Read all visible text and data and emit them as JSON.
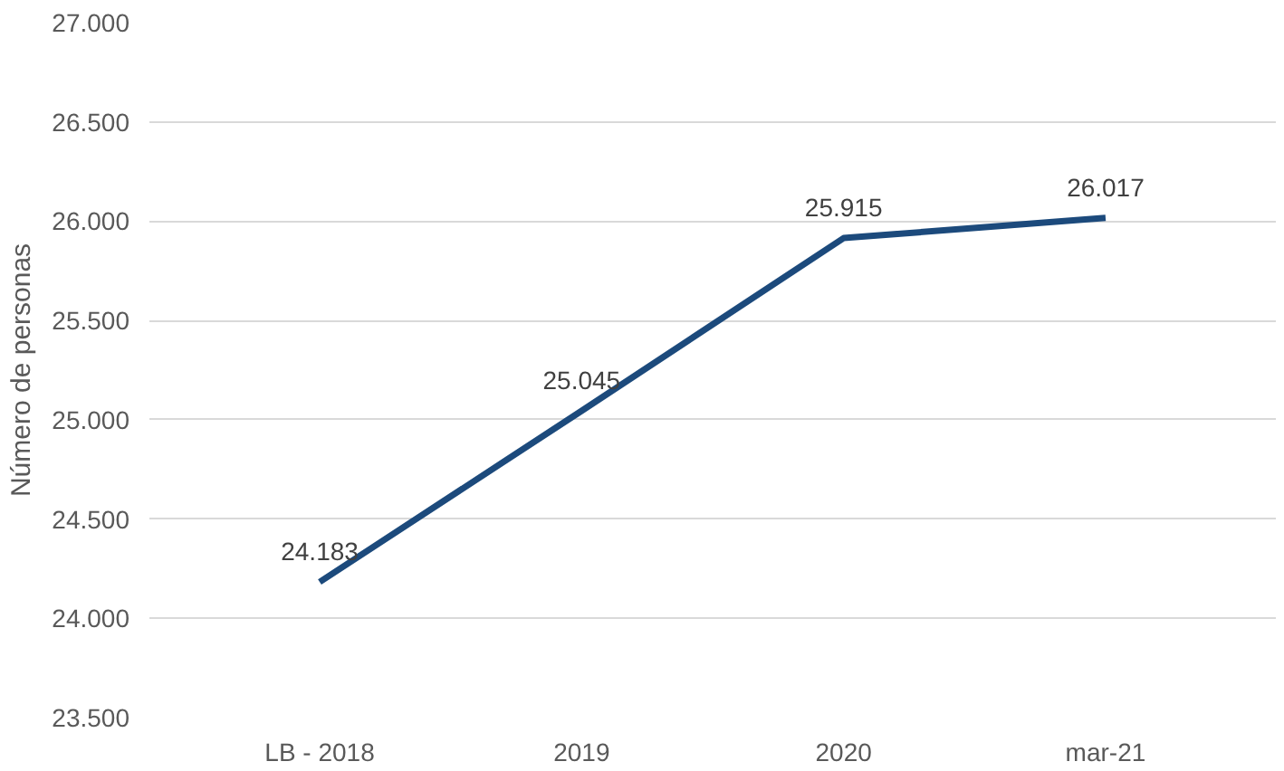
{
  "chart_data": {
    "type": "line",
    "ylabel": "Número de personas",
    "categories": [
      "LB - 2018",
      "2019",
      "2020",
      "mar-21"
    ],
    "series": [
      {
        "color": "#1c4a7c",
        "values": [
          24183,
          25045,
          25915,
          26017
        ],
        "value_labels": [
          "24.183",
          "25.045",
          "25.915",
          "26.017"
        ]
      }
    ],
    "ylim": [
      23500,
      27000
    ],
    "yticks": [
      {
        "value": 23500,
        "label": "23.500"
      },
      {
        "value": 24000,
        "label": "24.000"
      },
      {
        "value": 24500,
        "label": "24.500"
      },
      {
        "value": 25000,
        "label": "25.000"
      },
      {
        "value": 25500,
        "label": "25.500"
      },
      {
        "value": 26000,
        "label": "26.000"
      },
      {
        "value": 26500,
        "label": "26.500"
      },
      {
        "value": 27000,
        "label": "27.000"
      }
    ],
    "grid": "y",
    "marker": "none",
    "line_style": "solid"
  }
}
